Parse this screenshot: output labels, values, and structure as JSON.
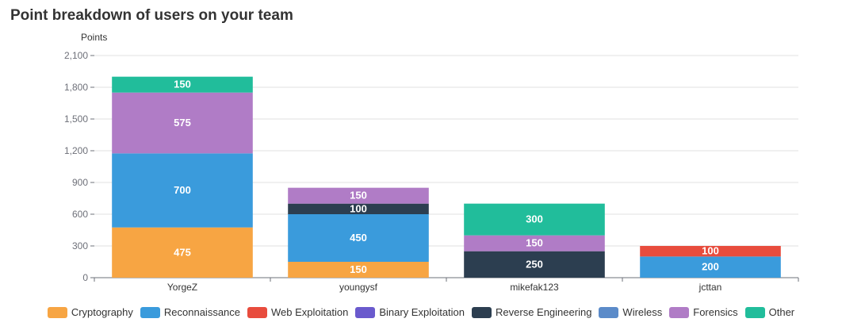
{
  "title": "Point breakdown of users on your team",
  "chart_data": {
    "type": "bar",
    "stacked": true,
    "ylabel": "Points",
    "ylim": [
      0,
      2100
    ],
    "yticks": [
      0,
      300,
      600,
      900,
      1200,
      1500,
      1800,
      2100
    ],
    "ytick_labels": [
      "0",
      "300",
      "600",
      "900",
      "1,200",
      "1,500",
      "1,800",
      "2,100"
    ],
    "grid": true,
    "legend_position": "bottom",
    "categories": [
      "YorgeZ",
      "youngysf",
      "mikefak123",
      "jcttan"
    ],
    "series": [
      {
        "name": "Cryptography",
        "color": "#f7a543",
        "values": [
          475,
          150,
          0,
          0
        ]
      },
      {
        "name": "Reconnaissance",
        "color": "#3a9bdc",
        "values": [
          700,
          450,
          0,
          200
        ]
      },
      {
        "name": "Web Exploitation",
        "color": "#e84c3d",
        "values": [
          0,
          0,
          0,
          100
        ]
      },
      {
        "name": "Binary Exploitation",
        "color": "#6a5acd",
        "values": [
          0,
          0,
          0,
          0
        ]
      },
      {
        "name": "Reverse Engineering",
        "color": "#2c3e50",
        "values": [
          0,
          100,
          250,
          0
        ]
      },
      {
        "name": "Wireless",
        "color": "#5b8bc9",
        "values": [
          0,
          0,
          0,
          0
        ]
      },
      {
        "name": "Forensics",
        "color": "#b07cc6",
        "values": [
          575,
          150,
          150,
          0
        ]
      },
      {
        "name": "Other",
        "color": "#21bd9b",
        "values": [
          150,
          0,
          300,
          0
        ]
      }
    ]
  }
}
